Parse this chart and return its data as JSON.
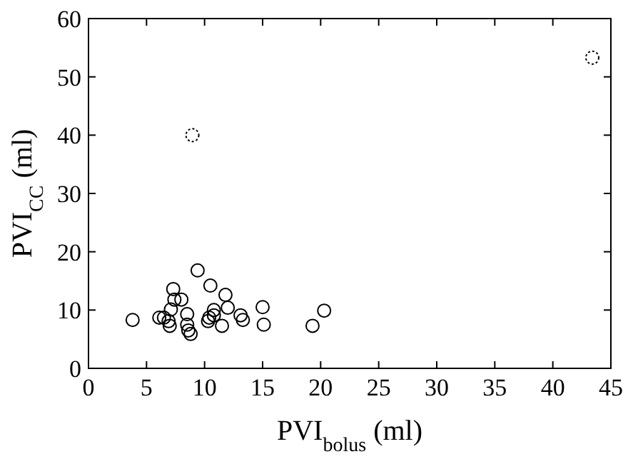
{
  "chart_data": {
    "type": "scatter",
    "xlabel": "PVI$_{bolus}$ (ml)",
    "ylabel": "PVI$_{CC}$ (ml)",
    "xlim": [
      0,
      45
    ],
    "xticks": [
      0,
      5,
      10,
      15,
      20,
      25,
      30,
      35,
      40,
      45
    ],
    "ylim": [
      0,
      60
    ],
    "yticks": [
      0,
      10,
      20,
      30,
      40,
      50,
      60
    ],
    "grid": false,
    "marker": "circle",
    "series": [
      {
        "color": "#000000",
        "line_style": "solid",
        "x": [
          3.8,
          6.1,
          6.5,
          6.9,
          7.0,
          7.1,
          7.3,
          7.4,
          8.0,
          8.5,
          8.5,
          8.6,
          8.8,
          9.4,
          10.3,
          10.4,
          10.5,
          10.8,
          10.8,
          11.5,
          11.8,
          12.0,
          13.1,
          13.3,
          15.0,
          15.1,
          19.3,
          20.3
        ],
        "values": [
          8.3,
          8.7,
          8.7,
          8.1,
          7.3,
          10.1,
          13.6,
          11.8,
          11.8,
          9.3,
          7.5,
          6.5,
          5.9,
          16.8,
          8.1,
          8.7,
          14.2,
          10.0,
          9.1,
          7.3,
          12.6,
          10.4,
          9.1,
          8.3,
          10.5,
          7.5,
          7.3,
          9.9
        ]
      },
      {
        "color": "#000000",
        "line_style": "dotted",
        "x": [
          8.95,
          43.4
        ],
        "values": [
          40,
          53.3
        ]
      }
    ]
  }
}
